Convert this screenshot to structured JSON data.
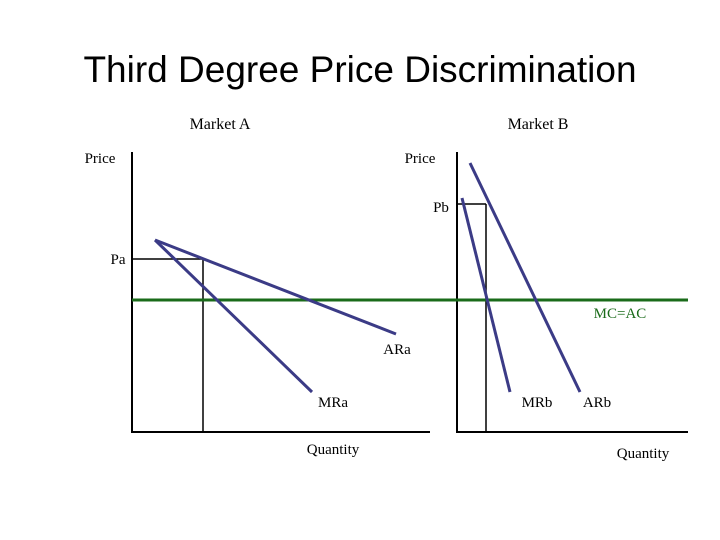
{
  "title": "Third Degree Price Discrimination",
  "market_a": {
    "heading": "Market A",
    "y_label": "Price",
    "x_label": "Quantity",
    "price_label": "Pa",
    "ar_label": "ARa",
    "mr_label": "MRa"
  },
  "market_b": {
    "heading": "Market B",
    "y_label": "Price",
    "x_label": "Quantity",
    "price_label": "Pb",
    "ar_label": "ARb",
    "mr_label": "MRb"
  },
  "cost_label": "MC=AC"
}
